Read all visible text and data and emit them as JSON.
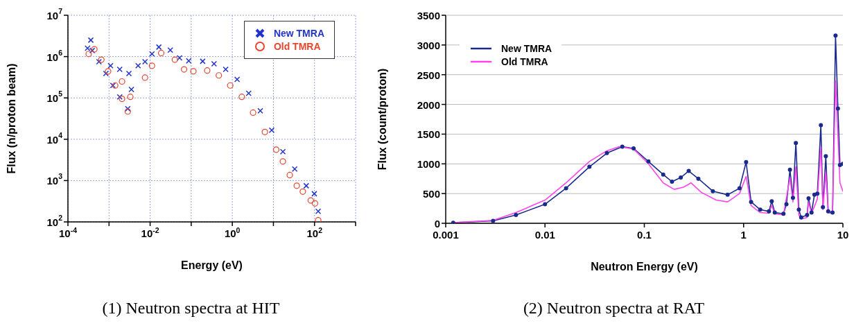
{
  "chart_data": [
    {
      "type": "scatter",
      "xlabel": "Energy (eV)",
      "ylabel": "Flux (n/proton beam)",
      "annotations": [
        "(1)  Neutron spectra at HIT"
      ],
      "log": "xy",
      "grid": true,
      "legend": "top right",
      "xlim": [
        0.0001,
        1000
      ],
      "ylim": [
        100,
        10000000
      ],
      "xticks": [
        {
          "value": 0.0001,
          "label": "10$^{-4}$"
        },
        {
          "value": 0.001,
          "label": null
        },
        {
          "value": 0.01,
          "label": "10$^{-2}$"
        },
        {
          "value": 0.1,
          "label": null
        },
        {
          "value": 1,
          "label": "10$^{0}$"
        },
        {
          "value": 10,
          "label": null
        },
        {
          "value": 100,
          "label": "10$^{2}$"
        },
        {
          "value": 1000,
          "label": null
        }
      ],
      "yticks": [
        {
          "value": 100,
          "label": "10$^{2}$"
        },
        {
          "value": 1000,
          "label": "10$^{3}$"
        },
        {
          "value": 10000,
          "label": "10$^{4}$"
        },
        {
          "value": 100000,
          "label": "10$^{5}$"
        },
        {
          "value": 1000000,
          "label": "10$^{6}$"
        },
        {
          "value": 10000000,
          "label": "10$^{7}$"
        }
      ],
      "series": [
        {
          "name": "New TMRA",
          "color": "#2233cc",
          "marker": "cross",
          "x": [
            0.0003,
            0.00036,
            0.00039,
            0.00057,
            0.00084,
            0.00124,
            0.00182,
            0.00286,
            0.00109,
            0.00182,
            0.00305,
            0.0035,
            0.0051,
            0.0075,
            0.0111,
            0.0163,
            0.031,
            0.052,
            0.087,
            0.19,
            0.36,
            0.69,
            1.31,
            2.5,
            4.8,
            9.1,
            17,
            33,
            63,
            99,
            123
          ],
          "values": [
            1600000,
            2500000,
            1400000,
            750000,
            390000,
            200000,
            106000,
            55000,
            600000,
            490000,
            390000,
            160000,
            600000,
            750000,
            1160000,
            1700000,
            1440000,
            930000,
            790000,
            770000,
            670000,
            490000,
            280000,
            130000,
            49000,
            16600,
            5000,
            1900,
            750,
            480,
            180
          ]
        },
        {
          "name": "Old TMRA",
          "color": "#e8452c",
          "marker": "circle",
          "x": [
            0.00032,
            0.00044,
            0.00065,
            0.00095,
            0.00141,
            0.00207,
            0.00286,
            0.0033,
            0.00207,
            0.0075,
            0.0111,
            0.0186,
            0.04,
            0.067,
            0.113,
            0.245,
            0.47,
            0.89,
            1.7,
            3.2,
            6.2,
            11.7,
            17,
            25,
            37,
            52,
            81,
            103,
            123
          ],
          "values": [
            1160000,
            1500000,
            840000,
            440000,
            200000,
            95000,
            47000,
            106000,
            250000,
            310000,
            600000,
            1220000,
            840000,
            490000,
            440000,
            460000,
            350000,
            200000,
            106000,
            44000,
            15000,
            5600,
            2900,
            1360,
            750,
            540,
            330,
            280,
            110
          ]
        }
      ]
    },
    {
      "type": "line",
      "xlabel": "Neutron Energy (eV)",
      "ylabel": "Flux (count/proton)",
      "annotations": [
        "(2) Neutron spectra at RAT"
      ],
      "log": "x",
      "grid": "y",
      "legend": "top left",
      "xlim": [
        0.001,
        10
      ],
      "ylim": [
        0,
        3500
      ],
      "xticks": [
        0.001,
        0.01,
        0.1,
        1,
        10
      ],
      "yticks": [
        0,
        500,
        1000,
        1500,
        2000,
        2500,
        3000,
        3500
      ],
      "series": [
        {
          "name": "New TMRA",
          "color": "#1a2a8c",
          "marker": "circle",
          "x": [
            0.00119,
            0.003,
            0.0051,
            0.01,
            0.0163,
            0.028,
            0.042,
            0.06,
            0.078,
            0.11,
            0.155,
            0.19,
            0.233,
            0.28,
            0.35,
            0.49,
            0.69,
            0.91,
            1.06,
            1.19,
            1.47,
            1.8,
            1.92,
            2.06,
            2.52,
            2.7,
            2.93,
            3.14,
            3.36,
            3.6,
            3.8,
            4.36,
            4.51,
            4.83,
            5.17,
            5.53,
            6,
            6.29,
            6.73,
            7.11,
            7.87,
            8.43,
            8.91,
            9.34,
            10
          ],
          "values": [
            10,
            40,
            140,
            320,
            590,
            950,
            1180,
            1290,
            1260,
            1040,
            820,
            700,
            770,
            880,
            750,
            540,
            480,
            590,
            1030,
            360,
            230,
            200,
            370,
            180,
            160,
            320,
            900,
            430,
            1350,
            230,
            100,
            140,
            420,
            180,
            480,
            500,
            1650,
            270,
            1130,
            200,
            180,
            3160,
            1930,
            980,
            1000
          ]
        },
        {
          "name": "Old TMRA",
          "color": "#ff44ee",
          "x": [
            0.00119,
            0.003,
            0.0051,
            0.01,
            0.0163,
            0.028,
            0.042,
            0.056,
            0.078,
            0.11,
            0.155,
            0.2,
            0.25,
            0.295,
            0.375,
            0.53,
            0.69,
            0.91,
            1.06,
            1.19,
            1.47,
            1.8,
            1.92,
            2.06,
            2.52,
            2.93,
            3.14,
            3.36,
            3.6,
            3.8,
            4.36,
            4.51,
            4.83,
            5.53,
            6,
            6.29,
            6.73,
            7.11,
            7.87,
            8.43,
            9.34,
            10
          ],
          "values": [
            10,
            50,
            180,
            390,
            680,
            1040,
            1220,
            1290,
            1250,
            1000,
            680,
            570,
            610,
            680,
            520,
            390,
            360,
            500,
            790,
            300,
            180,
            170,
            300,
            160,
            140,
            770,
            360,
            950,
            140,
            70,
            100,
            360,
            160,
            410,
            1280,
            230,
            860,
            180,
            160,
            2400,
            680,
            540
          ]
        }
      ]
    }
  ]
}
